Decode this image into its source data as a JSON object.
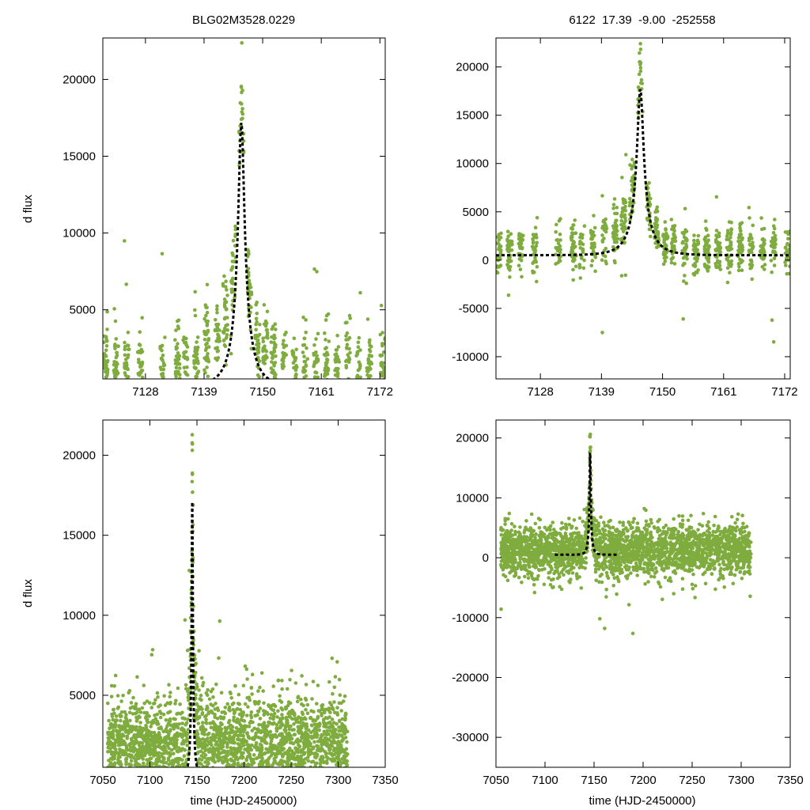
{
  "colors": {
    "points": "#7fac3e",
    "model": "#000000",
    "frame": "#000000"
  },
  "chart_data": [
    {
      "type": "scatter",
      "panel": "top-left",
      "title": "BLG02M3528.0229",
      "xlabel": "",
      "ylabel": "d flux",
      "xlim": [
        7120,
        7173
      ],
      "ylim": [
        500,
        22700
      ],
      "xticks": [
        7128,
        7139,
        7150,
        7161,
        7172
      ],
      "yticks": [
        5000,
        10000,
        15000,
        20000
      ],
      "model": {
        "type": "single-lens fit",
        "t0": 7146.0,
        "tE": 3.7,
        "peak": 17200,
        "base": 0,
        "style": "dashed"
      },
      "series": [
        {
          "name": "photometry",
          "style": "points"
        }
      ]
    },
    {
      "type": "scatter",
      "panel": "top-right",
      "title": "6122  17.39  -9.00  -252558",
      "xlabel": "",
      "ylabel": "",
      "xlim": [
        7120,
        7173
      ],
      "ylim": [
        -12300,
        23000
      ],
      "xticks": [
        7128,
        7139,
        7150,
        7161,
        7172
      ],
      "yticks": [
        -10000,
        -5000,
        0,
        5000,
        10000,
        15000,
        20000
      ],
      "model": {
        "type": "single-lens fit",
        "t0": 7146.0,
        "tE": 3.7,
        "peak": 17200,
        "base": 500,
        "style": "dashed"
      },
      "series": [
        {
          "name": "photometry",
          "style": "points"
        }
      ]
    },
    {
      "type": "scatter",
      "panel": "bottom-left",
      "title": "",
      "xlabel": "time (HJD-2450000)",
      "ylabel": "d flux",
      "xlim": [
        7050,
        7350
      ],
      "ylim": [
        500,
        22200
      ],
      "xticks": [
        7050,
        7100,
        7150,
        7200,
        7250,
        7300,
        7350
      ],
      "yticks": [
        5000,
        10000,
        15000,
        20000
      ],
      "model": {
        "type": "single-lens fit",
        "t0": 7145.0,
        "tE": 3.7,
        "peak": 17200,
        "base": 0,
        "style": "dashed"
      },
      "series": [
        {
          "name": "photometry",
          "style": "points"
        }
      ]
    },
    {
      "type": "scatter",
      "panel": "bottom-right",
      "title": "",
      "xlabel": "time (HJD-2450000)",
      "ylabel": "",
      "xlim": [
        7050,
        7350
      ],
      "ylim": [
        -35000,
        23000
      ],
      "xticks": [
        7050,
        7100,
        7150,
        7200,
        7250,
        7300,
        7350
      ],
      "yticks": [
        -30000,
        -20000,
        -10000,
        0,
        10000,
        20000
      ],
      "model": {
        "type": "single-lens fit",
        "t0": 7146.0,
        "tE": 3.7,
        "peak": 17200,
        "base": 500,
        "style": "dashed"
      },
      "series": [
        {
          "name": "photometry",
          "style": "points"
        }
      ]
    }
  ]
}
